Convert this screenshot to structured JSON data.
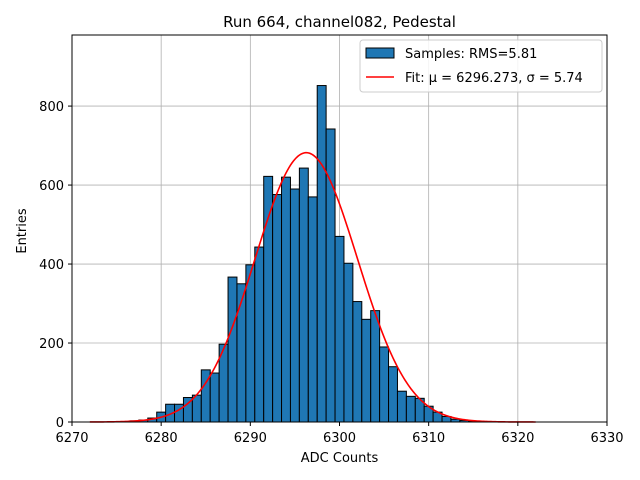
{
  "chart_data": {
    "type": "bar",
    "title": "Run 664, channel082, Pedestal",
    "xlabel": "ADC Counts",
    "ylabel": "Entries",
    "xlim": [
      6270,
      6330
    ],
    "ylim": [
      0,
      980
    ],
    "xticks": [
      6270,
      6280,
      6290,
      6300,
      6310,
      6320,
      6330
    ],
    "yticks": [
      0,
      200,
      400,
      600,
      800
    ],
    "grid": true,
    "legend_position": "top-right",
    "bin_width": 1,
    "bins": [
      {
        "x": 6277,
        "y": 3
      },
      {
        "x": 6278,
        "y": 5
      },
      {
        "x": 6279,
        "y": 10
      },
      {
        "x": 6280,
        "y": 25
      },
      {
        "x": 6281,
        "y": 45
      },
      {
        "x": 6282,
        "y": 45
      },
      {
        "x": 6283,
        "y": 62
      },
      {
        "x": 6284,
        "y": 68
      },
      {
        "x": 6285,
        "y": 132
      },
      {
        "x": 6286,
        "y": 124
      },
      {
        "x": 6287,
        "y": 197
      },
      {
        "x": 6288,
        "y": 367
      },
      {
        "x": 6289,
        "y": 350
      },
      {
        "x": 6290,
        "y": 398
      },
      {
        "x": 6291,
        "y": 443
      },
      {
        "x": 6292,
        "y": 622
      },
      {
        "x": 6293,
        "y": 576
      },
      {
        "x": 6294,
        "y": 620
      },
      {
        "x": 6295,
        "y": 590
      },
      {
        "x": 6296,
        "y": 643
      },
      {
        "x": 6297,
        "y": 570
      },
      {
        "x": 6298,
        "y": 852
      },
      {
        "x": 6299,
        "y": 742
      },
      {
        "x": 6300,
        "y": 470
      },
      {
        "x": 6301,
        "y": 402
      },
      {
        "x": 6302,
        "y": 305
      },
      {
        "x": 6303,
        "y": 260
      },
      {
        "x": 6304,
        "y": 282
      },
      {
        "x": 6305,
        "y": 190
      },
      {
        "x": 6306,
        "y": 140
      },
      {
        "x": 6307,
        "y": 78
      },
      {
        "x": 6308,
        "y": 65
      },
      {
        "x": 6309,
        "y": 60
      },
      {
        "x": 6310,
        "y": 40
      },
      {
        "x": 6311,
        "y": 25
      },
      {
        "x": 6312,
        "y": 14
      },
      {
        "x": 6313,
        "y": 7
      },
      {
        "x": 6314,
        "y": 4
      },
      {
        "x": 6315,
        "y": 2
      }
    ],
    "fit": {
      "mu": 6296.273,
      "sigma": 5.74,
      "amplitude": 682,
      "x_range": [
        6272,
        6322
      ]
    },
    "legend": [
      {
        "label": "Samples: RMS=5.81",
        "kind": "bar"
      },
      {
        "label": "Fit: μ = 6296.273, σ = 5.74",
        "kind": "line"
      }
    ],
    "colors": {
      "bar_fill": "#1f77b4",
      "bar_edge": "#000000",
      "fit_line": "#ff0000",
      "grid": "#b0b0b0"
    }
  }
}
